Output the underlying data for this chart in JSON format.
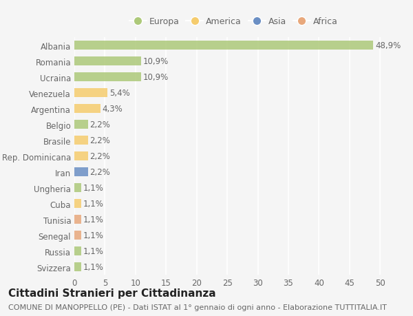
{
  "countries": [
    "Albania",
    "Romania",
    "Ucraina",
    "Venezuela",
    "Argentina",
    "Belgio",
    "Brasile",
    "Rep. Dominicana",
    "Iran",
    "Ungheria",
    "Cuba",
    "Tunisia",
    "Senegal",
    "Russia",
    "Svizzera"
  ],
  "values": [
    48.9,
    10.9,
    10.9,
    5.4,
    4.3,
    2.2,
    2.2,
    2.2,
    2.2,
    1.1,
    1.1,
    1.1,
    1.1,
    1.1,
    1.1
  ],
  "labels": [
    "48,9%",
    "10,9%",
    "10,9%",
    "5,4%",
    "4,3%",
    "2,2%",
    "2,2%",
    "2,2%",
    "2,2%",
    "1,1%",
    "1,1%",
    "1,1%",
    "1,1%",
    "1,1%",
    "1,1%"
  ],
  "continents": [
    "Europa",
    "Europa",
    "Europa",
    "America",
    "America",
    "Europa",
    "America",
    "America",
    "Asia",
    "Europa",
    "America",
    "Africa",
    "Africa",
    "Europa",
    "Europa"
  ],
  "continent_colors": {
    "Europa": "#adc97a",
    "America": "#f5cc6e",
    "Asia": "#6b8fc4",
    "Africa": "#e8a87c"
  },
  "legend_order": [
    "Europa",
    "America",
    "Asia",
    "Africa"
  ],
  "title": "Cittadini Stranieri per Cittadinanza",
  "subtitle": "COMUNE DI MANOPPELLO (PE) - Dati ISTAT al 1° gennaio di ogni anno - Elaborazione TUTTITALIA.IT",
  "xlim": [
    0,
    52
  ],
  "xticks": [
    0,
    5,
    10,
    15,
    20,
    25,
    30,
    35,
    40,
    45,
    50
  ],
  "background_color": "#f5f5f5",
  "grid_color": "#ffffff",
  "bar_height": 0.55,
  "title_fontsize": 11,
  "subtitle_fontsize": 8,
  "tick_fontsize": 8.5,
  "label_fontsize": 8.5,
  "legend_fontsize": 9
}
